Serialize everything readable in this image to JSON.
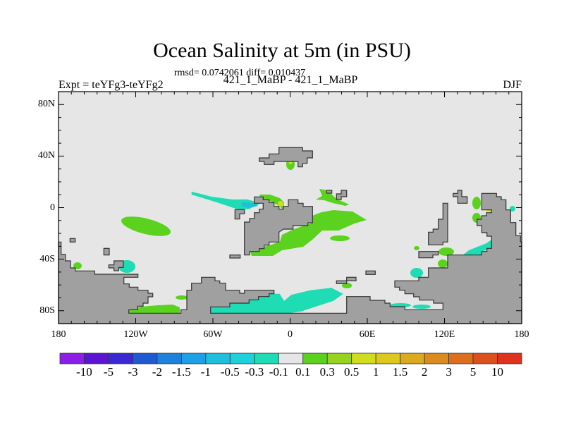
{
  "title": "Ocean Salinity at 5m (in PSU)",
  "stats": "rmsd= 0.0742061 diff= 0.010437",
  "left_subtitle": "Expt = teYFg3-teYFg2",
  "center_subtitle": "421_1_MaBP - 421_1_MaBP",
  "right_subtitle": "DJF",
  "map": {
    "lon_range": [
      -180,
      180
    ],
    "lat_range": [
      -90,
      90
    ],
    "lat_labels": [
      {
        "value": 80,
        "label": "80N"
      },
      {
        "value": 40,
        "label": "40N"
      },
      {
        "value": 0,
        "label": "0"
      },
      {
        "value": -40,
        "label": "40S"
      },
      {
        "value": -80,
        "label": "80S"
      }
    ],
    "lon_labels": [
      {
        "value": -180,
        "label": "180"
      },
      {
        "value": -120,
        "label": "120W"
      },
      {
        "value": -60,
        "label": "60W"
      },
      {
        "value": 0,
        "label": "0"
      },
      {
        "value": 60,
        "label": "60E"
      },
      {
        "value": 120,
        "label": "120E"
      },
      {
        "value": 180,
        "label": "180"
      }
    ],
    "ocean_color": "#e6e6e6",
    "land_color": "#a0a0a0"
  },
  "colorbar": {
    "levels": [
      "-10",
      "-5",
      "-3",
      "-2",
      "-1.5",
      "-1",
      "-0.5",
      "-0.3",
      "-0.1",
      "0.1",
      "0.3",
      "0.5",
      "1",
      "1.5",
      "2",
      "3",
      "5",
      "10"
    ],
    "colors": [
      "#8c1ee6",
      "#5a14d2",
      "#3c28d2",
      "#1e5ad2",
      "#1e82dc",
      "#1ea0e6",
      "#1ebedc",
      "#1ed2dc",
      "#1edcb4",
      "#e6e6e6",
      "#5ad21e",
      "#96d21e",
      "#d2dc1e",
      "#dcc81e",
      "#dcaa1e",
      "#dc8c1e",
      "#dc6e1e",
      "#dc501e",
      "#dc321e"
    ]
  }
}
